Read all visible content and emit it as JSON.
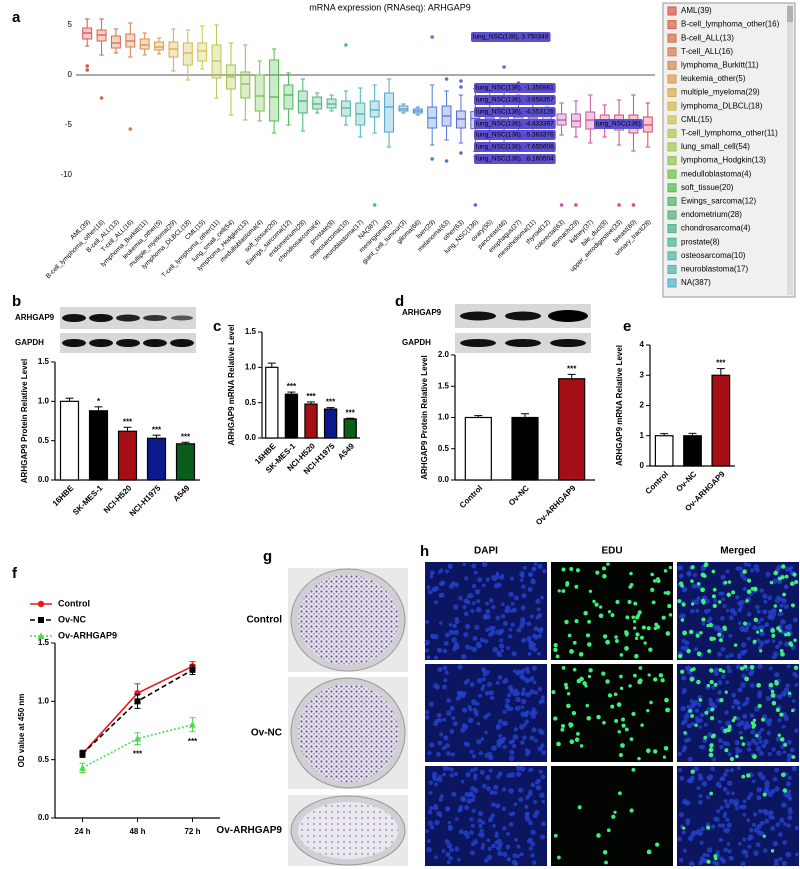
{
  "panel_labels": [
    "a",
    "b",
    "c",
    "d",
    "e",
    "f",
    "g",
    "h"
  ],
  "chart_data": [
    {
      "type": "box",
      "title": "mRNA expression (RNAseq): ARHGAP9",
      "categories": [
        "AML(39)",
        "B-cell_lymphoma_other(16)",
        "B-cell_ALL(13)",
        "T-cell_ALL(16)",
        "lymphoma_Burkitt(11)",
        "leukemia_other(5)",
        "multiple_myeloma(29)",
        "lymphoma_DLBCL(18)",
        "CML(15)",
        "T-cell_lymphoma_other(11)",
        "lung_small_cell(54)",
        "lymphoma_Hodgkin(13)",
        "medulloblastoma(4)",
        "soft_tissue(20)",
        "Ewings_sarcoma(12)",
        "endometrium(28)",
        "chondrosarcoma(4)",
        "prostate(8)",
        "osteosarcoma(10)",
        "neuroblastoma(17)",
        "NA(387)",
        "meningioma(3)",
        "giant_cell_tumour(3)",
        "glioma(66)",
        "liver(29)",
        "melanoma(63)",
        "other(63)",
        "lung_NSC(136)",
        "ovary(55)",
        "pancreas(46)",
        "esophagus(27)",
        "mesothelioma(11)",
        "thyroid(12)",
        "colorectal(63)",
        "stomach(29)",
        "kidney(37)",
        "bile_duct(8)",
        "upper_aerodigestive(33)",
        "breast(60)",
        "urinary_tract(28)"
      ],
      "colors": [
        "#d9534f",
        "#d9604a",
        "#d96b4a",
        "#d9774a",
        "#d98a4a",
        "#d99a4a",
        "#d9aa4a",
        "#d4b64a",
        "#cfc24a",
        "#bcc44a",
        "#a6c44a",
        "#8cc44a",
        "#6fc04a",
        "#52bc4e",
        "#4ab85e",
        "#4ab470",
        "#4ab482",
        "#4ab494",
        "#4ab4a6",
        "#4ab4b4",
        "#4ab0c0",
        "#4aa6c8",
        "#4a9ad0",
        "#4a8ed6",
        "#4a80d6",
        "#5074d6",
        "#5a6ad6",
        "#6462d6",
        "#7060d6",
        "#7c5ed6",
        "#8a5cd0",
        "#985ac8",
        "#a658be",
        "#b456b2",
        "#c054a6",
        "#c8529a",
        "#cf508c",
        "#d44e7e",
        "#d64c70",
        "#d84a62"
      ],
      "boxes": [
        {
          "low": 2.9,
          "q1": 3.6,
          "median": 4.2,
          "q3": 4.7,
          "high": 5.6,
          "outliers": [
            0.9,
            0.5
          ]
        },
        {
          "low": 2.0,
          "q1": 3.4,
          "median": 4.0,
          "q3": 4.5,
          "high": 5.6,
          "outliers": [
            -2.3
          ]
        },
        {
          "low": 2.2,
          "q1": 2.7,
          "median": 3.2,
          "q3": 3.9,
          "high": 4.6,
          "outliers": []
        },
        {
          "low": 1.8,
          "q1": 2.8,
          "median": 3.4,
          "q3": 4.1,
          "high": 5.2,
          "outliers": [
            -5.4
          ]
        },
        {
          "low": 2.0,
          "q1": 2.6,
          "median": 3.0,
          "q3": 3.6,
          "high": 4.2,
          "outliers": []
        },
        {
          "low": 2.1,
          "q1": 2.5,
          "median": 2.8,
          "q3": 3.3,
          "high": 3.7,
          "outliers": []
        },
        {
          "low": 0.4,
          "q1": 1.8,
          "median": 2.6,
          "q3": 3.3,
          "high": 4.6,
          "outliers": []
        },
        {
          "low": -0.5,
          "q1": 1.0,
          "median": 2.2,
          "q3": 3.2,
          "high": 4.5,
          "outliers": []
        },
        {
          "low": 0.6,
          "q1": 1.4,
          "median": 2.4,
          "q3": 3.2,
          "high": 4.9,
          "outliers": []
        },
        {
          "low": -2.3,
          "q1": -0.3,
          "median": 1.4,
          "q3": 3.0,
          "high": 5.0,
          "outliers": []
        },
        {
          "low": -4.0,
          "q1": -1.4,
          "median": -0.2,
          "q3": 1.0,
          "high": 3.2,
          "outliers": []
        },
        {
          "low": -4.5,
          "q1": -2.3,
          "median": -0.9,
          "q3": 0.3,
          "high": 3.0,
          "outliers": []
        },
        {
          "low": -4.6,
          "q1": -3.6,
          "median": -2.1,
          "q3": 0.0,
          "high": 1.4,
          "outliers": []
        },
        {
          "low": -5.8,
          "q1": -4.6,
          "median": -2.2,
          "q3": 1.5,
          "high": 2.6,
          "outliers": []
        },
        {
          "low": -5.0,
          "q1": -3.4,
          "median": -2.0,
          "q3": -1.0,
          "high": 0.2,
          "outliers": []
        },
        {
          "low": -5.6,
          "q1": -3.8,
          "median": -2.6,
          "q3": -1.6,
          "high": -0.4,
          "outliers": []
        },
        {
          "low": -3.8,
          "q1": -3.4,
          "median": -2.9,
          "q3": -2.2,
          "high": -1.8,
          "outliers": []
        },
        {
          "low": -3.6,
          "q1": -3.3,
          "median": -2.9,
          "q3": -2.4,
          "high": -2.0,
          "outliers": []
        },
        {
          "low": -5.0,
          "q1": -4.1,
          "median": -3.3,
          "q3": -2.6,
          "high": -1.6,
          "outliers": [
            3.0
          ]
        },
        {
          "low": -6.2,
          "q1": -5.0,
          "median": -3.9,
          "q3": -2.8,
          "high": -1.3,
          "outliers": []
        },
        {
          "low": -5.8,
          "q1": -4.2,
          "median": -3.5,
          "q3": -2.6,
          "high": -1.0,
          "outliers": [
            -13.0
          ]
        },
        {
          "low": -7.2,
          "q1": -5.7,
          "median": -3.2,
          "q3": -1.8,
          "high": -0.4,
          "outliers": []
        },
        {
          "low": -3.8,
          "q1": -3.6,
          "median": -3.4,
          "q3": -3.1,
          "high": -2.9,
          "outliers": []
        },
        {
          "low": -4.0,
          "q1": -3.8,
          "median": -3.6,
          "q3": -3.4,
          "high": -3.2,
          "outliers": []
        },
        {
          "low": -7.0,
          "q1": -5.3,
          "median": -4.3,
          "q3": -3.2,
          "high": -1.0,
          "outliers": [
            3.8,
            -8.4
          ]
        },
        {
          "low": -6.5,
          "q1": -5.1,
          "median": -4.1,
          "q3": -3.1,
          "high": -1.6,
          "outliers": [
            -0.4,
            -8.6
          ]
        },
        {
          "low": -6.8,
          "q1": -5.3,
          "median": -4.4,
          "q3": -3.6,
          "high": -2.0,
          "outliers": [
            -1.2,
            -0.6,
            -7.8
          ]
        },
        {
          "low": -7.655608,
          "q1": -5.363376,
          "median": -4.353126,
          "q3": -3.658357,
          "high": -1.356961,
          "outliers": [
            3.750349,
            -8.160504,
            -13.0
          ]
        },
        {
          "low": -7.4,
          "q1": -5.1,
          "median": -4.3,
          "q3": -3.4,
          "high": -1.2,
          "outliers": []
        },
        {
          "low": -7.0,
          "q1": -5.0,
          "median": -4.2,
          "q3": -3.3,
          "high": -1.5,
          "outliers": [
            0.8
          ]
        },
        {
          "low": -6.2,
          "q1": -4.8,
          "median": -4.2,
          "q3": -3.5,
          "high": -2.0,
          "outliers": [
            -0.8
          ]
        },
        {
          "low": -5.8,
          "q1": -4.9,
          "median": -4.3,
          "q3": -3.8,
          "high": -2.8,
          "outliers": []
        },
        {
          "low": -5.0,
          "q1": -4.5,
          "median": -4.1,
          "q3": -3.7,
          "high": -3.2,
          "outliers": []
        },
        {
          "low": -6.0,
          "q1": -5.0,
          "median": -4.5,
          "q3": -3.9,
          "high": -2.8,
          "outliers": [
            -13.0
          ]
        },
        {
          "low": -6.2,
          "q1": -5.2,
          "median": -4.6,
          "q3": -3.9,
          "high": -2.6,
          "outliers": [
            -13.0
          ]
        },
        {
          "low": -6.8,
          "q1": -5.4,
          "median": -4.5,
          "q3": -3.7,
          "high": -2.0,
          "outliers": []
        },
        {
          "low": -6.2,
          "q1": -5.2,
          "median": -4.6,
          "q3": -4.0,
          "high": -3.0,
          "outliers": []
        },
        {
          "low": -7.0,
          "q1": -5.5,
          "median": -4.8,
          "q3": -4.0,
          "high": -2.5,
          "outliers": [
            -13.0
          ]
        },
        {
          "low": -7.6,
          "q1": -5.8,
          "median": -4.9,
          "q3": -4.0,
          "high": -2.0,
          "outliers": [
            -13.0
          ]
        },
        {
          "low": -7.2,
          "q1": -5.7,
          "median": -5.0,
          "q3": -4.2,
          "high": -2.8,
          "outliers": []
        }
      ],
      "ylim": [
        -14,
        6
      ],
      "yticks": [
        -10,
        -5,
        0,
        5
      ],
      "hline": 0,
      "legend": "right",
      "annotations": [
        "lung_NSC(136), 3.750349",
        "lung_NSC(136), -1.356961",
        "lung_NSC(136), -3.658357",
        "lung_NSC(136), -4.353126",
        "lung_NSC(136), -4.433397",
        "lung_NSC(136), -5.363376",
        "lung_NSC(136), -7.655608",
        "lung_NSC(136), -8.160504",
        "lung_NSC(136)"
      ]
    },
    {
      "type": "bar",
      "categories": [
        "16HBE",
        "SK-MES-1",
        "NCI-H520",
        "NCI-H1975",
        "A549"
      ],
      "values": [
        1.0,
        0.88,
        0.62,
        0.53,
        0.46
      ],
      "errors": [
        0.04,
        0.05,
        0.05,
        0.04,
        0.02
      ],
      "colors": [
        "#ffffff",
        "#000000",
        "#a50f15",
        "#0a1a8c",
        "#0b5e1a"
      ],
      "significance": [
        null,
        "*",
        "***",
        "***",
        "***"
      ],
      "ylabel": "ARHGAP9 Protein Relative Level",
      "ylim": [
        0,
        1.5
      ],
      "yticks": [
        {
          "value": 0,
          "label": "0.0"
        },
        0.5,
        {
          "value": 1,
          "label": "1.0"
        },
        1.5
      ]
    },
    {
      "type": "bar",
      "categories": [
        "16HBE",
        "SK-MES-1",
        "NCI-H520",
        "NCI-H1975",
        "A549"
      ],
      "values": [
        1.0,
        0.62,
        0.48,
        0.41,
        0.27
      ],
      "errors": [
        0.06,
        0.03,
        0.03,
        0.02,
        0.01
      ],
      "colors": [
        "#ffffff",
        "#000000",
        "#a50f15",
        "#0a1a8c",
        "#0b5e1a"
      ],
      "significance": [
        null,
        "***",
        "***",
        "***",
        "***"
      ],
      "ylabel": "ARHGAP9 mRNA Relative Level",
      "ylim": [
        0,
        1.5
      ],
      "yticks": [
        {
          "value": 0,
          "label": "0.0"
        },
        0.5,
        {
          "value": 1,
          "label": "1.0"
        },
        1.5
      ]
    },
    {
      "type": "bar",
      "categories": [
        "Control",
        "Ov-NC",
        "Ov-ARHGAP9"
      ],
      "values": [
        1.0,
        1.0,
        1.62
      ],
      "errors": [
        0.03,
        0.06,
        0.07
      ],
      "colors": [
        "#ffffff",
        "#000000",
        "#a50f15"
      ],
      "significance": [
        null,
        null,
        "***"
      ],
      "ylabel": "ARHGAP9 Protein Relative Level",
      "ylim": [
        0,
        2
      ],
      "yticks": [
        {
          "value": 0,
          "label": "0.0"
        },
        0.5,
        {
          "value": 1,
          "label": "1.0"
        },
        1.5,
        {
          "value": 2,
          "label": "2.0"
        }
      ]
    },
    {
      "type": "bar",
      "categories": [
        "Control",
        "Ov-NC",
        "Ov-ARHGAP9"
      ],
      "values": [
        1.0,
        1.0,
        3.0
      ],
      "errors": [
        0.07,
        0.08,
        0.22
      ],
      "colors": [
        "#ffffff",
        "#000000",
        "#a50f15"
      ],
      "significance": [
        null,
        null,
        "***"
      ],
      "ylabel": "ARHGAP9 mRNA Relative Level",
      "ylim": [
        0,
        4
      ],
      "yticks": [
        0,
        1,
        2,
        3,
        4
      ]
    },
    {
      "type": "line",
      "categories": [
        "24 h",
        "48 h",
        "72 h"
      ],
      "series": [
        {
          "name": "Control",
          "color": "#e41a1c",
          "dash": "solid",
          "marker": "circle",
          "values": [
            0.55,
            1.07,
            1.3
          ],
          "errors": [
            0.03,
            0.08,
            0.04
          ]
        },
        {
          "name": "Ov-NC",
          "color": "#000000",
          "dash": "dashed",
          "marker": "square",
          "values": [
            0.55,
            1.0,
            1.27
          ],
          "errors": [
            0.03,
            0.06,
            0.04
          ]
        },
        {
          "name": "Ov-ARHGAP9",
          "color": "#4ddb4d",
          "dash": "dotted",
          "marker": "triangle",
          "values": [
            0.43,
            0.68,
            0.8
          ],
          "errors": [
            0.04,
            0.05,
            0.06
          ],
          "significance": [
            null,
            "***",
            "***"
          ]
        }
      ],
      "ylabel": "OD value at 450 nm",
      "ylim": [
        0,
        1.5
      ],
      "yticks": [
        {
          "value": 0,
          "label": "0.0"
        },
        0.5,
        {
          "value": 1,
          "label": "1.0"
        },
        1.5
      ],
      "legend": "upper left"
    }
  ],
  "blots": [
    {
      "labels": [
        "ARHGAP9",
        "GAPDH"
      ]
    },
    {
      "labels": [
        "ARHGAP9",
        "GAPDH"
      ]
    }
  ],
  "colony": {
    "labels": [
      "Control",
      "Ov-NC",
      "Ov-ARHGAP9"
    ]
  },
  "edu": {
    "columns": [
      "DAPI",
      "EDU",
      "Merged"
    ]
  }
}
